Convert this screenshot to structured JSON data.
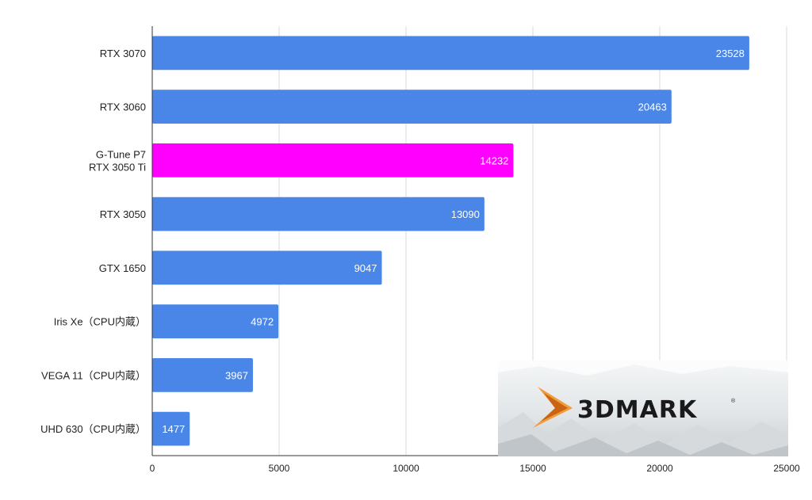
{
  "chart_data": {
    "type": "bar",
    "orientation": "horizontal",
    "categories": [
      [
        "RTX 3070"
      ],
      [
        "RTX 3060"
      ],
      [
        "G-Tune P7",
        "RTX 3050 Ti"
      ],
      [
        "RTX 3050"
      ],
      [
        "GTX 1650"
      ],
      [
        "Iris Xe（CPU内蔵）"
      ],
      [
        "VEGA 11（CPU内蔵）"
      ],
      [
        "UHD 630（CPU内蔵）"
      ]
    ],
    "values": [
      23528,
      20463,
      14232,
      13090,
      9047,
      4972,
      3967,
      1477
    ],
    "bar_colors": [
      "#4a86e8",
      "#4a86e8",
      "#ff00ff",
      "#4a86e8",
      "#4a86e8",
      "#4a86e8",
      "#4a86e8",
      "#4a86e8"
    ],
    "x_ticks": [
      "0",
      "5000",
      "10000",
      "15000",
      "20000",
      "25000"
    ],
    "xlim": [
      0,
      25000
    ],
    "grid": true,
    "legend": "none",
    "title": "",
    "xlabel": "",
    "ylabel": ""
  },
  "logo": {
    "wordmark": "3DMARK",
    "accent_color": "#e8862a"
  }
}
